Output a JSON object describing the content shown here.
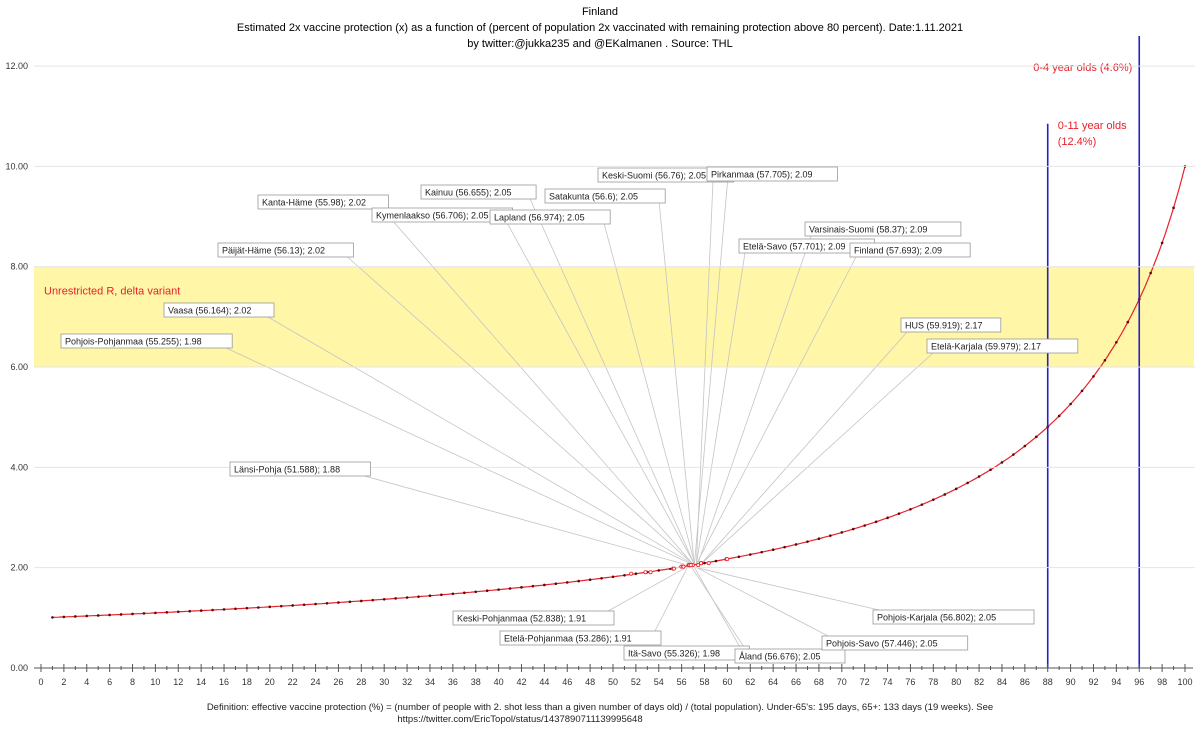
{
  "chart_data": {
    "type": "scatter",
    "title": "Finland",
    "subtitle": "Estimated 2x vaccine protection (x) as a function of (percent of population 2x vaccinated with remaining protection above 80 percent). Date:1.11.2021",
    "byline": "by twitter:@jukka235  and @EKalmanen . Source: THL",
    "footer_line1": "Definition: effective vaccine protection (%) = (number of people with 2. shot less than a given number of days old) / (total population). Under-65's: 195 days, 65+: 133 days (19 weeks). See",
    "footer_line2": "https://twitter.com/EricTopol/status/1437890711139995648",
    "xlim": [
      0,
      100
    ],
    "ylim": [
      0,
      12.6
    ],
    "x_ticks": [
      0,
      2,
      4,
      6,
      8,
      10,
      12,
      14,
      16,
      18,
      20,
      22,
      24,
      26,
      28,
      30,
      32,
      34,
      36,
      38,
      40,
      42,
      44,
      46,
      48,
      50,
      52,
      54,
      56,
      58,
      60,
      62,
      64,
      66,
      68,
      70,
      72,
      74,
      76,
      78,
      80,
      82,
      84,
      86,
      88,
      90,
      92,
      94,
      96,
      98,
      100
    ],
    "x_tick_labels": [
      "0",
      "2",
      "4",
      "6",
      "8",
      "10",
      "12",
      "14",
      "16",
      "18",
      "20",
      "22",
      "24",
      "26",
      "28",
      "30",
      "32",
      "34",
      "36",
      "38",
      "40",
      "42",
      "44",
      "46",
      "48",
      "50",
      "52",
      "54",
      "56",
      "58",
      "60",
      "62",
      "64",
      "66",
      "68",
      "70",
      "72",
      "74",
      "76",
      "78",
      "80",
      "82",
      "84",
      "86",
      "88",
      "90",
      "92",
      "94",
      "96",
      "98",
      "100"
    ],
    "y_ticks": [
      0,
      2,
      4,
      6,
      8,
      10,
      12
    ],
    "y_tick_labels": [
      "0.00",
      "2.00",
      "4.00",
      "6.00",
      "8.00",
      "10.00",
      "12.00"
    ],
    "curve": {
      "name": "protection curve",
      "formula": "1/(1 - x/100 * 0.9)",
      "x_start": 1,
      "x_end": 100,
      "color": "#e8202a"
    },
    "band": {
      "label": "Unrestricted R, delta variant",
      "y_range": [
        6,
        8
      ],
      "color": "#fff6a8"
    },
    "vertical_lines": [
      {
        "x": 88,
        "y_top": 10.85,
        "label_line1": "0-11 year olds",
        "label_line2": "(12.4%)",
        "color": "#2222cc"
      },
      {
        "x": 96,
        "y_top": 12.6,
        "label_line1": "0-4 year olds (4.6%)",
        "label_line2": "",
        "color": "#2222cc"
      }
    ],
    "regions": [
      {
        "label": "Kanta-Häme (55.98); 2.02",
        "x": 55.98,
        "y": 2.02
      },
      {
        "label": "Kainuu (56.655); 2.05",
        "x": 56.655,
        "y": 2.05
      },
      {
        "label": "Kymenlaakso (56.706); 2.05",
        "x": 56.706,
        "y": 2.05
      },
      {
        "label": "Lapland (56.974); 2.05",
        "x": 56.974,
        "y": 2.05
      },
      {
        "label": "Satakunta (56.6); 2.05",
        "x": 56.6,
        "y": 2.05
      },
      {
        "label": "Keski-Suomi (56.76); 2.05",
        "x": 56.76,
        "y": 2.05
      },
      {
        "label": "Pirkanmaa (57.705); 2.09",
        "x": 57.705,
        "y": 2.09
      },
      {
        "label": "Varsinais-Suomi (58.37); 2.09",
        "x": 58.37,
        "y": 2.09
      },
      {
        "label": "Etelä-Savo (57.701); 2.09",
        "x": 57.701,
        "y": 2.09
      },
      {
        "label": "Finland (57.693); 2.09",
        "x": 57.693,
        "y": 2.09
      },
      {
        "label": "Päijät-Häme (56.13); 2.02",
        "x": 56.13,
        "y": 2.02
      },
      {
        "label": "Vaasa (56.164); 2.02",
        "x": 56.164,
        "y": 2.02
      },
      {
        "label": "Pohjois-Pohjanmaa (55.255); 1.98",
        "x": 55.255,
        "y": 1.98
      },
      {
        "label": "HUS (59.919); 2.17",
        "x": 59.919,
        "y": 2.17
      },
      {
        "label": "Etelä-Karjala (59.979); 2.17",
        "x": 59.979,
        "y": 2.17
      },
      {
        "label": "Länsi-Pohja (51.588); 1.88",
        "x": 51.588,
        "y": 1.88
      },
      {
        "label": "Keski-Pohjanmaa (52.838); 1.91",
        "x": 52.838,
        "y": 1.91
      },
      {
        "label": "Etelä-Pohjanmaa (53.286); 1.91",
        "x": 53.286,
        "y": 1.91
      },
      {
        "label": "Itä-Savo (55.326); 1.98",
        "x": 55.326,
        "y": 1.98
      },
      {
        "label": "Åland (56.676); 2.05",
        "x": 56.676,
        "y": 2.05
      },
      {
        "label": "Pohjois-Savo (57.446); 2.05",
        "x": 57.446,
        "y": 2.05
      },
      {
        "label": "Pohjois-Karjala (56.802); 2.05",
        "x": 56.802,
        "y": 2.05
      }
    ]
  }
}
